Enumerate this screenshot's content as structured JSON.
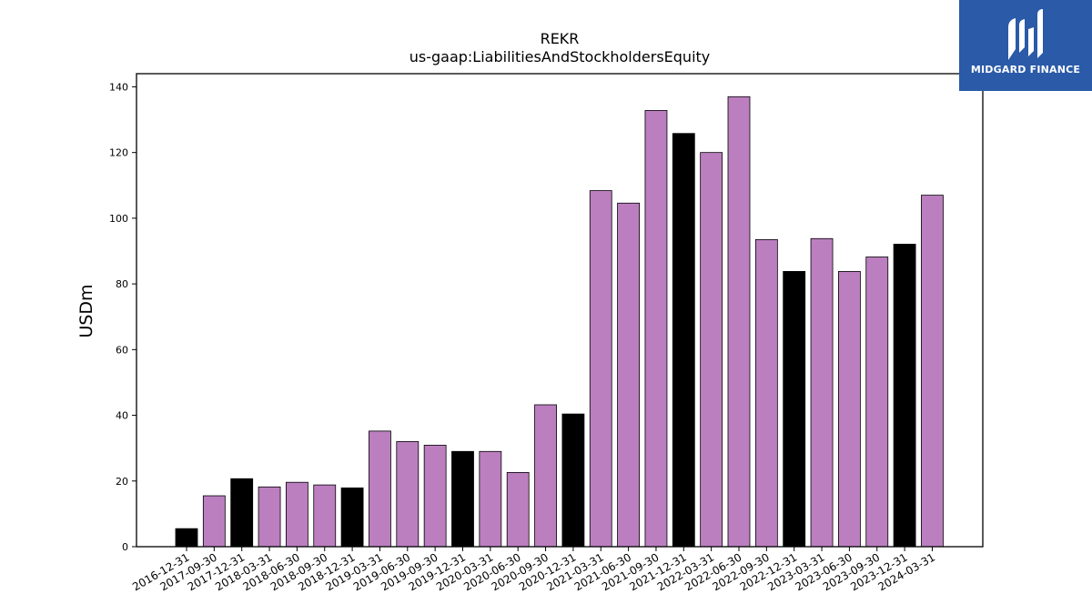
{
  "chart_data": {
    "type": "bar",
    "title": "REKR",
    "subtitle": "us-gaap:LiabilitiesAndStockholdersEquity",
    "xlabel": "",
    "ylabel": "USDm",
    "ylim": [
      0,
      144
    ],
    "yticks": [
      0,
      20,
      40,
      60,
      80,
      100,
      120,
      140
    ],
    "grid": false,
    "categories": [
      "2016-12-31",
      "2017-09-30",
      "2017-12-31",
      "2018-03-31",
      "2018-06-30",
      "2018-09-30",
      "2018-12-31",
      "2019-03-31",
      "2019-06-30",
      "2019-09-30",
      "2019-12-31",
      "2020-03-31",
      "2020-06-30",
      "2020-09-30",
      "2020-12-31",
      "2021-03-31",
      "2021-06-30",
      "2021-09-30",
      "2021-12-31",
      "2022-03-31",
      "2022-06-30",
      "2022-09-30",
      "2022-12-31",
      "2023-03-31",
      "2023-06-30",
      "2023-09-30",
      "2023-12-31",
      "2024-03-31"
    ],
    "values": [
      5.5,
      15.5,
      20.7,
      18.2,
      19.6,
      18.8,
      17.9,
      35.2,
      32.0,
      30.9,
      29.0,
      29.0,
      22.6,
      43.2,
      40.4,
      108.4,
      104.6,
      132.8,
      125.8,
      120.0,
      137.0,
      93.5,
      83.8,
      93.8,
      83.8,
      88.2,
      92.1,
      107.0
    ],
    "bar_colors": [
      "#000000",
      "#bb7fbf",
      "#000000",
      "#bb7fbf",
      "#bb7fbf",
      "#bb7fbf",
      "#000000",
      "#bb7fbf",
      "#bb7fbf",
      "#bb7fbf",
      "#000000",
      "#bb7fbf",
      "#bb7fbf",
      "#bb7fbf",
      "#000000",
      "#bb7fbf",
      "#bb7fbf",
      "#bb7fbf",
      "#000000",
      "#bb7fbf",
      "#bb7fbf",
      "#bb7fbf",
      "#000000",
      "#bb7fbf",
      "#bb7fbf",
      "#bb7fbf",
      "#000000",
      "#bb7fbf"
    ]
  },
  "logo": {
    "text": "MIDGARD FINANCE",
    "icon": "midgard-logo-icon",
    "background": "#2a5aa8"
  }
}
